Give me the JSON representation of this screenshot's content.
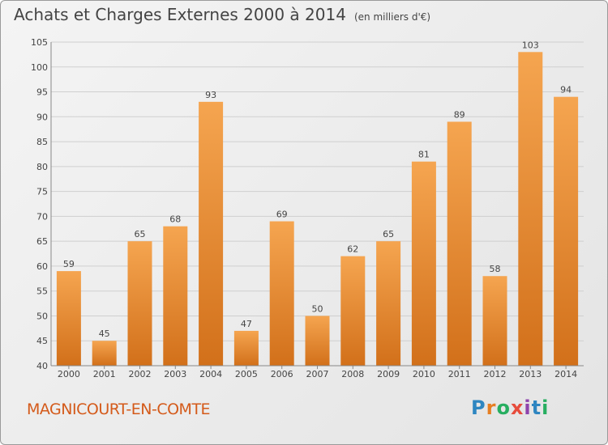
{
  "header": {
    "title": "Achats et Charges Externes 2000 à 2014",
    "unit": "(en milliers d'€)"
  },
  "footer": {
    "town": "MAGNICOURT-EN-COMTE",
    "brand_letters": [
      "P",
      "r",
      "o",
      "x",
      "i",
      "t",
      "i"
    ],
    "brand_colors": [
      "#2e86c1",
      "#e67e22",
      "#27ae60",
      "#e74c3c",
      "#8e44ad",
      "#2e86c1",
      "#27ae60"
    ]
  },
  "chart_data": {
    "type": "bar",
    "categories": [
      "2000",
      "2001",
      "2002",
      "2003",
      "2004",
      "2005",
      "2006",
      "2007",
      "2008",
      "2009",
      "2010",
      "2011",
      "2012",
      "2013",
      "2014"
    ],
    "values": [
      59,
      45,
      65,
      68,
      93,
      47,
      69,
      50,
      62,
      65,
      81,
      89,
      58,
      103,
      94
    ],
    "title": "Achats et Charges Externes 2000 à 2014",
    "ylim": [
      40,
      105
    ],
    "yticks": [
      40,
      45,
      50,
      55,
      60,
      65,
      70,
      75,
      80,
      85,
      90,
      95,
      100,
      105
    ],
    "grid": true,
    "colors": {
      "bar_top": "#f5a550",
      "bar_bottom": "#d2701a",
      "grid": "#cfcfcf",
      "axis": "#888888"
    }
  }
}
